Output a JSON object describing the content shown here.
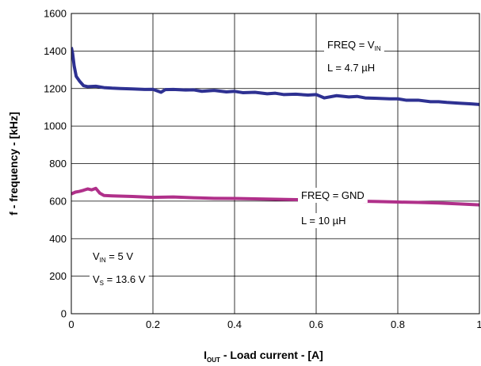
{
  "chart_data": {
    "type": "line",
    "xlabel": {
      "main": "I",
      "sub": "OUT",
      "rest": " - Load current - [A]"
    },
    "ylabel": "f - frequency - [kHz]",
    "xlim": [
      0,
      1
    ],
    "ylim": [
      0,
      1600
    ],
    "x_ticks": [
      "0",
      "0.2",
      "0.4",
      "0.6",
      "0.8",
      "1"
    ],
    "y_ticks": [
      "0",
      "200",
      "400",
      "600",
      "800",
      "1000",
      "1200",
      "1400",
      "1600"
    ],
    "grid": true,
    "series": [
      {
        "color": "#2e3192",
        "x": [
          0,
          0.003,
          0.007,
          0.012,
          0.02,
          0.03,
          0.04,
          0.06,
          0.08,
          0.1,
          0.12,
          0.15,
          0.18,
          0.2,
          0.22,
          0.23,
          0.25,
          0.28,
          0.3,
          0.32,
          0.35,
          0.38,
          0.4,
          0.42,
          0.45,
          0.48,
          0.5,
          0.52,
          0.55,
          0.58,
          0.6,
          0.62,
          0.65,
          0.68,
          0.7,
          0.72,
          0.75,
          0.78,
          0.8,
          0.82,
          0.85,
          0.88,
          0.9,
          0.92,
          0.95,
          0.98,
          1.0
        ],
        "y": [
          1420,
          1390,
          1320,
          1265,
          1240,
          1215,
          1210,
          1212,
          1205,
          1202,
          1200,
          1198,
          1195,
          1196,
          1180,
          1194,
          1195,
          1192,
          1193,
          1185,
          1190,
          1182,
          1185,
          1178,
          1180,
          1172,
          1175,
          1168,
          1170,
          1165,
          1168,
          1150,
          1162,
          1155,
          1158,
          1150,
          1148,
          1145,
          1145,
          1138,
          1138,
          1130,
          1130,
          1126,
          1122,
          1118,
          1115
        ]
      },
      {
        "color": "#b0308a",
        "x": [
          0,
          0.01,
          0.02,
          0.03,
          0.04,
          0.05,
          0.06,
          0.07,
          0.08,
          0.1,
          0.15,
          0.2,
          0.25,
          0.3,
          0.35,
          0.4,
          0.45,
          0.5,
          0.55,
          0.6,
          0.65,
          0.7,
          0.75,
          0.8,
          0.85,
          0.9,
          0.95,
          1.0
        ],
        "y": [
          638,
          648,
          652,
          658,
          665,
          660,
          668,
          642,
          630,
          628,
          625,
          620,
          622,
          618,
          615,
          614,
          612,
          610,
          608,
          606,
          604,
          600,
          598,
          595,
          593,
          590,
          585,
          580
        ]
      }
    ],
    "annotations": [
      {
        "id": "freq-vin",
        "parts": [
          {
            "t": "FREQ = V"
          },
          {
            "t": "IN",
            "sub": true
          }
        ]
      },
      {
        "id": "l-47",
        "parts": [
          {
            "t": "L = 4.7 µH"
          }
        ]
      },
      {
        "id": "freq-gnd",
        "parts": [
          {
            "t": "FREQ = GND"
          }
        ]
      },
      {
        "id": "l-10",
        "parts": [
          {
            "t": "L = 10 µH"
          }
        ]
      },
      {
        "id": "vin-5v",
        "parts": [
          {
            "t": "V"
          },
          {
            "t": "IN",
            "sub": true
          },
          {
            "t": " = 5 V"
          }
        ]
      },
      {
        "id": "vs-136",
        "parts": [
          {
            "t": "V"
          },
          {
            "t": "S",
            "sub": true
          },
          {
            "t": " = 13.6 V"
          }
        ]
      }
    ]
  }
}
